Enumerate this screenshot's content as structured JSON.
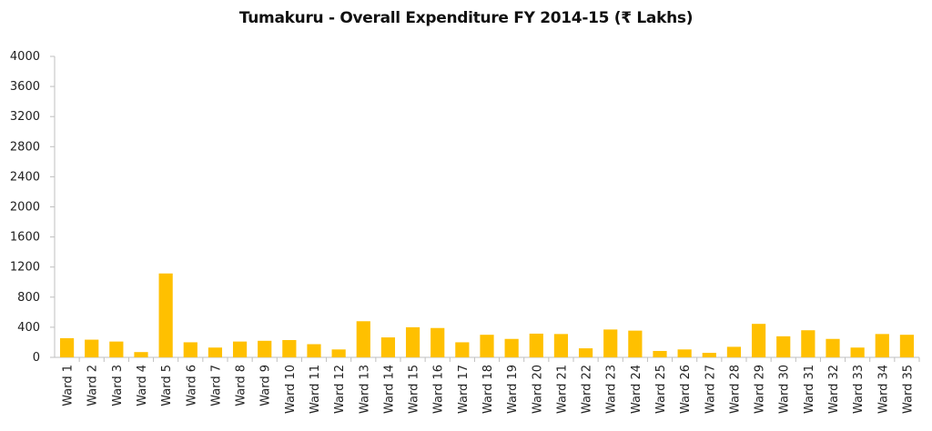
{
  "chart_data": {
    "type": "bar",
    "title": "Tumakuru - Overall Expenditure FY 2014-15 (₹ Lakhs)",
    "xlabel": "",
    "ylabel": "",
    "ylim": [
      0,
      4000
    ],
    "yticks": [
      0,
      400,
      800,
      1200,
      1600,
      2000,
      2400,
      2800,
      3200,
      3600,
      4000
    ],
    "grid": false,
    "bar_color": "#FFC000",
    "categories": [
      "Ward 1",
      "Ward 2",
      "Ward 3",
      "Ward 4",
      "Ward 5",
      "Ward 6",
      "Ward 7",
      "Ward 8",
      "Ward 9",
      "Ward 10",
      "Ward 11",
      "Ward 12",
      "Ward 13",
      "Ward 14",
      "Ward 15",
      "Ward 16",
      "Ward 17",
      "Ward 18",
      "Ward 19",
      "Ward 20",
      "Ward 21",
      "Ward 22",
      "Ward 23",
      "Ward 24",
      "Ward 25",
      "Ward 26",
      "Ward 27",
      "Ward 28",
      "Ward 29",
      "Ward 30",
      "Ward 31",
      "Ward 32",
      "Ward 33",
      "Ward 34",
      "Ward 35"
    ],
    "values": [
      255,
      235,
      210,
      70,
      1115,
      200,
      130,
      210,
      220,
      230,
      175,
      105,
      480,
      265,
      400,
      390,
      200,
      300,
      245,
      315,
      310,
      120,
      370,
      355,
      85,
      105,
      60,
      140,
      445,
      280,
      360,
      245,
      130,
      310,
      300
    ]
  }
}
